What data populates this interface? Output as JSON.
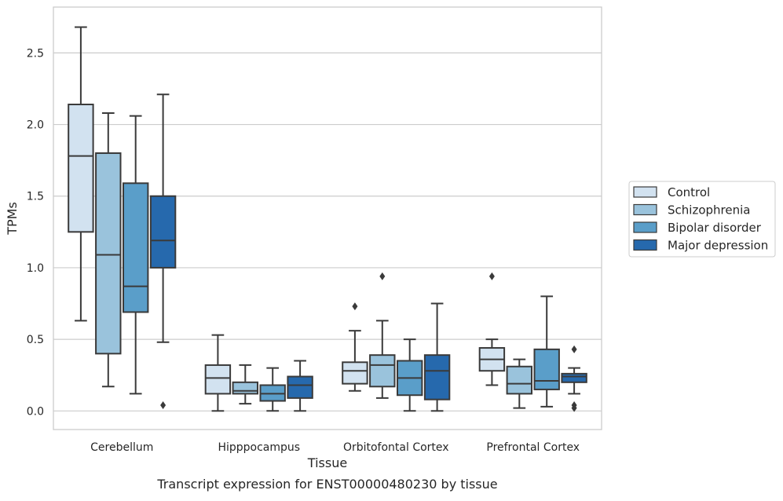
{
  "chart_data": {
    "type": "boxplot",
    "title": "",
    "caption": "Transcript expression for ENST00000480230 by tissue",
    "xlabel": "Tissue",
    "ylabel": "TPMs",
    "ylim": [
      -0.13,
      2.82
    ],
    "yticks": [
      0.0,
      0.5,
      1.0,
      1.5,
      2.0,
      2.5
    ],
    "ytick_labels": [
      "0.0",
      "0.5",
      "1.0",
      "1.5",
      "2.0",
      "2.5"
    ],
    "grid": "horizontal",
    "legend_position": "right",
    "categories": [
      "Cerebellum",
      "Hipppocampus",
      "Orbitofontal Cortex",
      "Prefrontal Cortex"
    ],
    "series": [
      {
        "name": "Control",
        "color": "#d2e2f0",
        "boxes": [
          {
            "whislo": 0.63,
            "q1": 1.25,
            "med": 1.78,
            "q3": 2.14,
            "whishi": 2.68,
            "fliers": []
          },
          {
            "whislo": 0.0,
            "q1": 0.12,
            "med": 0.23,
            "q3": 0.32,
            "whishi": 0.53,
            "fliers": []
          },
          {
            "whislo": 0.14,
            "q1": 0.19,
            "med": 0.28,
            "q3": 0.34,
            "whishi": 0.56,
            "fliers": [
              0.73
            ]
          },
          {
            "whislo": 0.18,
            "q1": 0.28,
            "med": 0.36,
            "q3": 0.44,
            "whishi": 0.5,
            "fliers": [
              0.94
            ]
          }
        ]
      },
      {
        "name": "Schizophrenia",
        "color": "#9ac3dc",
        "boxes": [
          {
            "whislo": 0.17,
            "q1": 0.4,
            "med": 1.09,
            "q3": 1.8,
            "whishi": 2.08,
            "fliers": []
          },
          {
            "whislo": 0.05,
            "q1": 0.12,
            "med": 0.14,
            "q3": 0.2,
            "whishi": 0.32,
            "fliers": []
          },
          {
            "whislo": 0.09,
            "q1": 0.17,
            "med": 0.32,
            "q3": 0.39,
            "whishi": 0.63,
            "fliers": [
              0.94
            ]
          },
          {
            "whislo": 0.02,
            "q1": 0.12,
            "med": 0.19,
            "q3": 0.31,
            "whishi": 0.36,
            "fliers": []
          }
        ]
      },
      {
        "name": "Bipolar disorder",
        "color": "#5a9ec9",
        "boxes": [
          {
            "whislo": 0.12,
            "q1": 0.69,
            "med": 0.87,
            "q3": 1.59,
            "whishi": 2.06,
            "fliers": []
          },
          {
            "whislo": 0.0,
            "q1": 0.07,
            "med": 0.12,
            "q3": 0.18,
            "whishi": 0.3,
            "fliers": []
          },
          {
            "whislo": 0.0,
            "q1": 0.11,
            "med": 0.23,
            "q3": 0.35,
            "whishi": 0.5,
            "fliers": []
          },
          {
            "whislo": 0.03,
            "q1": 0.15,
            "med": 0.21,
            "q3": 0.43,
            "whishi": 0.8,
            "fliers": []
          }
        ]
      },
      {
        "name": "Major depression",
        "color": "#2669ad",
        "boxes": [
          {
            "whislo": 0.48,
            "q1": 1.0,
            "med": 1.19,
            "q3": 1.5,
            "whishi": 2.21,
            "fliers": [
              0.04
            ]
          },
          {
            "whislo": 0.0,
            "q1": 0.09,
            "med": 0.18,
            "q3": 0.24,
            "whishi": 0.35,
            "fliers": []
          },
          {
            "whislo": 0.0,
            "q1": 0.08,
            "med": 0.28,
            "q3": 0.39,
            "whishi": 0.75,
            "fliers": []
          },
          {
            "whislo": 0.12,
            "q1": 0.2,
            "med": 0.24,
            "q3": 0.26,
            "whishi": 0.3,
            "fliers": [
              0.43,
              0.04,
              0.02
            ]
          }
        ]
      }
    ]
  }
}
